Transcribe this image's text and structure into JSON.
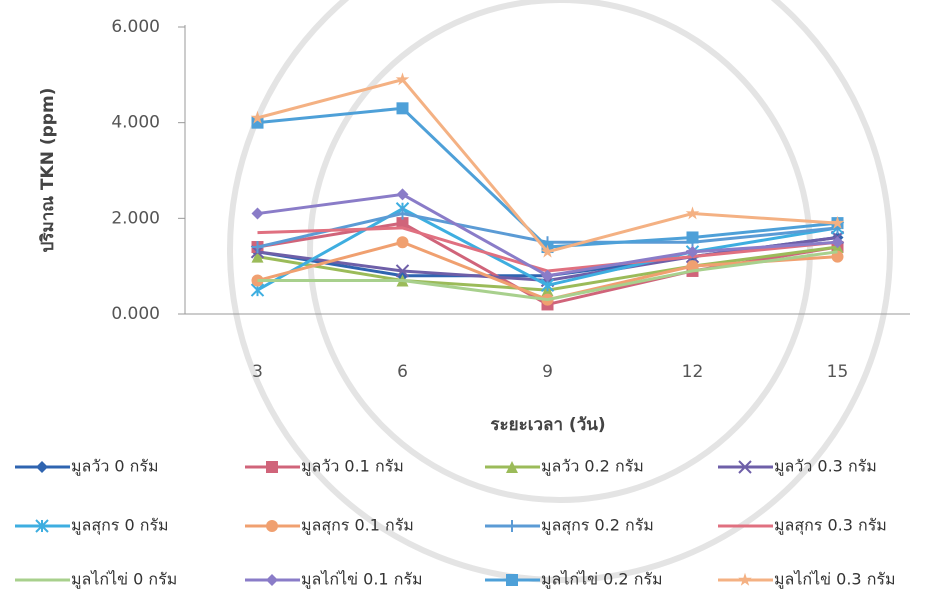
{
  "chart_data": {
    "type": "line",
    "x_label": "ระยะเวลา (วัน)",
    "y_label": "ปริมาณ TKN (ppm)",
    "categories": [
      "3",
      "6",
      "9",
      "12",
      "15"
    ],
    "ylim": [
      0,
      6
    ],
    "yticks": [
      {
        "value": 0,
        "label": "0.000"
      },
      {
        "value": 2,
        "label": "2.000"
      },
      {
        "value": 4,
        "label": "4.000"
      },
      {
        "value": 6,
        "label": "6.000"
      }
    ],
    "series": [
      {
        "name": "มูลวัว 0 กรัม",
        "color": "#2f64b0",
        "marker": "diamond",
        "values": [
          1.3,
          0.8,
          0.8,
          1.2,
          1.6
        ]
      },
      {
        "name": "มูลวัว 0.1 กรัม",
        "color": "#d0647a",
        "marker": "square",
        "values": [
          1.4,
          1.9,
          0.2,
          0.9,
          1.4
        ]
      },
      {
        "name": "มูลวัว 0.2 กรัม",
        "color": "#9bbb59",
        "marker": "triangle",
        "values": [
          1.2,
          0.7,
          0.5,
          1.0,
          1.4
        ]
      },
      {
        "name": "มูลวัว 0.3 กรัม",
        "color": "#6e5fa8",
        "marker": "x",
        "values": [
          1.3,
          0.9,
          0.7,
          1.2,
          1.6
        ]
      },
      {
        "name": "มูลสุกร 0 กรัม",
        "color": "#3eaee0",
        "marker": "asterisk",
        "values": [
          0.5,
          2.2,
          0.6,
          1.3,
          1.8
        ]
      },
      {
        "name": "มูลสุกร 0.1 กรัม",
        "color": "#f0a070",
        "marker": "circle",
        "values": [
          0.7,
          1.5,
          0.3,
          1.0,
          1.2
        ]
      },
      {
        "name": "มูลสุกร  0.2 กรัม",
        "color": "#5b9bd5",
        "marker": "plus",
        "values": [
          1.4,
          2.1,
          1.5,
          1.5,
          1.8
        ]
      },
      {
        "name": "มูลสุกร 0.3 กรัม",
        "color": "#e07080",
        "marker": "none",
        "values": [
          1.7,
          1.8,
          0.9,
          1.2,
          1.5
        ]
      },
      {
        "name": "มูลไก่ไข่ 0 กรัม",
        "color": "#a8d08d",
        "marker": "none",
        "values": [
          0.7,
          0.7,
          0.3,
          0.9,
          1.3
        ]
      },
      {
        "name": "มูลไก่ไข่ 0.1 กรัม",
        "color": "#8a7cc8",
        "marker": "diamond",
        "values": [
          2.1,
          2.5,
          0.8,
          1.3,
          1.5
        ]
      },
      {
        "name": "มูลไก่ไข่  0.2 กรัม",
        "color": "#4ea0d8",
        "marker": "square",
        "values": [
          4.0,
          4.3,
          1.4,
          1.6,
          1.9
        ]
      },
      {
        "name": "มูลไก่ไข่  0.3 กรัม",
        "color": "#f4b183",
        "marker": "star",
        "values": [
          4.1,
          4.9,
          1.3,
          2.1,
          1.9
        ]
      }
    ]
  }
}
